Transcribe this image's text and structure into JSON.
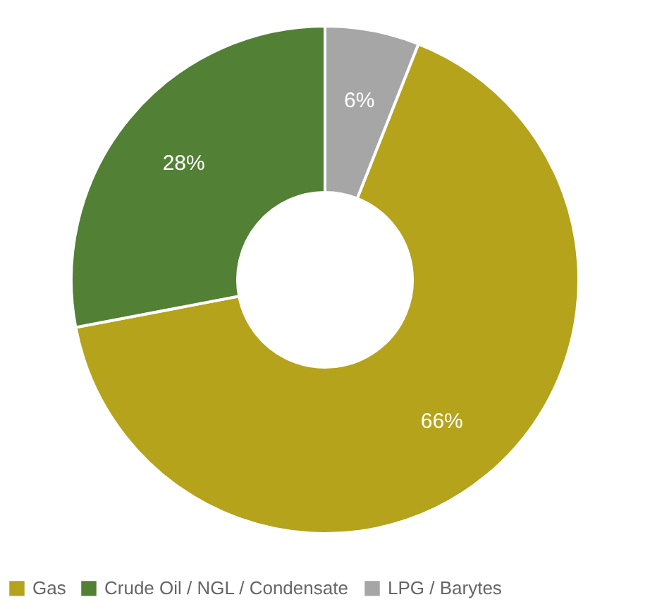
{
  "chart_data": {
    "type": "donut",
    "categories": [
      "Gas",
      "Crude Oil / NGL / Condensate",
      "LPG / Barytes"
    ],
    "values": [
      66,
      28,
      6
    ],
    "colors": [
      "#b5a31b",
      "#528035",
      "#a6a6a6"
    ],
    "value_labels": [
      "66%",
      "28%",
      "6%"
    ],
    "legend": "bottom"
  }
}
